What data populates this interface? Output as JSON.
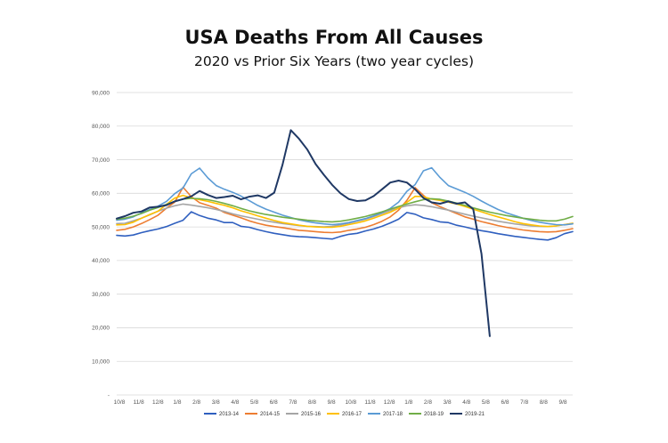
{
  "chart_data": {
    "type": "line",
    "title": "USA Deaths From All Causes",
    "subtitle": "2020 vs Prior Six Years (two year cycles)",
    "xlabel": "",
    "ylabel": "",
    "ylim": [
      0,
      90000
    ],
    "y_ticks": [
      "-",
      "10,000",
      "20,000",
      "30,000",
      "40,000",
      "50,000",
      "60,000",
      "70,000",
      "80,000",
      "90,000"
    ],
    "y_tick_values": [
      0,
      10000,
      20000,
      30000,
      40000,
      50000,
      60000,
      70000,
      80000,
      90000
    ],
    "x_ticks": [
      "10/8",
      "11/8",
      "12/8",
      "1/8",
      "2/8",
      "3/8",
      "4/8",
      "5/8",
      "6/8",
      "7/8",
      "8/8",
      "9/8",
      "10/8",
      "11/8",
      "12/8",
      "1/8",
      "2/8",
      "3/8",
      "4/8",
      "5/8",
      "6/8",
      "7/8",
      "8/8",
      "9/8"
    ],
    "grid": true,
    "legend_position": "bottom",
    "series": [
      {
        "name": "2013-14",
        "color": "#2f5fbf",
        "values": [
          47500,
          47300,
          47600,
          48300,
          48900,
          49400,
          50100,
          51100,
          52000,
          54500,
          53400,
          52600,
          52100,
          51300,
          51300,
          50200,
          49900,
          49200,
          48600,
          48100,
          47700,
          47300,
          47100,
          47000,
          46800,
          46600,
          46400,
          47200,
          47800,
          48100,
          48800,
          49400,
          50200,
          51200,
          52300,
          54300,
          53800,
          52700,
          52200,
          51500,
          51300,
          50500,
          50000,
          49400,
          48900,
          48500,
          48000,
          47600,
          47200,
          46900,
          46600,
          46300,
          46100,
          46800,
          48000,
          48600
        ]
      },
      {
        "name": "2014-15",
        "color": "#ed7d31",
        "values": [
          49000,
          49300,
          50000,
          51000,
          52200,
          53500,
          55600,
          57400,
          61800,
          59000,
          57200,
          56400,
          55600,
          54300,
          53500,
          52700,
          51800,
          51100,
          50500,
          50100,
          49800,
          49400,
          49000,
          48800,
          48600,
          48400,
          48300,
          48500,
          49000,
          49400,
          49900,
          50700,
          51700,
          53000,
          55000,
          57900,
          61700,
          59400,
          57200,
          56000,
          55000,
          54000,
          53000,
          52300,
          51600,
          51000,
          50400,
          49900,
          49500,
          49100,
          48800,
          48600,
          48500,
          48600,
          49000,
          49500
        ]
      },
      {
        "name": "2015-16",
        "color": "#a5a5a5",
        "values": [
          51000,
          51100,
          51800,
          52600,
          53600,
          54700,
          55600,
          56300,
          56800,
          56500,
          56100,
          55700,
          55200,
          54600,
          53900,
          53300,
          52800,
          52300,
          51800,
          51400,
          51000,
          50700,
          50400,
          50200,
          50100,
          50000,
          50200,
          50600,
          51100,
          51700,
          52300,
          53100,
          54000,
          54900,
          55700,
          56300,
          56600,
          56400,
          56000,
          55500,
          55000,
          54400,
          53800,
          53200,
          52700,
          52200,
          51700,
          51300,
          50900,
          50600,
          50300,
          50200,
          50100,
          50300,
          50700,
          51100
        ]
      },
      {
        "name": "2016-17",
        "color": "#ffc000",
        "values": [
          50600,
          50700,
          51400,
          52600,
          53700,
          54700,
          56700,
          58600,
          59400,
          58600,
          58100,
          57600,
          57000,
          56400,
          55700,
          54800,
          54100,
          53300,
          52600,
          51900,
          51300,
          50900,
          50500,
          50200,
          50000,
          49900,
          49900,
          50200,
          50700,
          51200,
          51800,
          52600,
          53500,
          54400,
          55600,
          57300,
          59100,
          59000,
          58300,
          57900,
          57400,
          56800,
          56100,
          55300,
          54500,
          53700,
          53000,
          52300,
          51600,
          51000,
          50600,
          50300,
          50100,
          50300,
          50700,
          51100
        ]
      },
      {
        "name": "2017-18",
        "color": "#5b9bd5",
        "values": [
          52000,
          52300,
          53000,
          54200,
          55200,
          56200,
          57600,
          59900,
          61600,
          65800,
          67500,
          64600,
          62300,
          61200,
          60300,
          59200,
          57800,
          56400,
          55300,
          54400,
          53500,
          52800,
          52100,
          51600,
          51200,
          50900,
          50700,
          50900,
          51300,
          51900,
          52500,
          53300,
          54300,
          55500,
          57400,
          60600,
          62600,
          66700,
          67600,
          64700,
          62300,
          61300,
          60300,
          59100,
          57700,
          56400,
          55200,
          54200,
          53400,
          52600,
          51900,
          51400,
          51000,
          50700,
          50600,
          50900
        ]
      },
      {
        "name": "2018-19",
        "color": "#70ad47",
        "values": [
          52300,
          52600,
          53200,
          54000,
          55000,
          55800,
          56700,
          57600,
          58300,
          58500,
          58400,
          58100,
          57600,
          57000,
          56300,
          55500,
          54800,
          54200,
          53700,
          53300,
          52900,
          52600,
          52300,
          52000,
          51800,
          51600,
          51500,
          51700,
          52100,
          52600,
          53100,
          53800,
          54500,
          55300,
          56100,
          56800,
          57500,
          58100,
          58400,
          58200,
          57700,
          57100,
          56400,
          55700,
          55000,
          54400,
          53900,
          53400,
          53000,
          52600,
          52300,
          52000,
          51800,
          51800,
          52300,
          53100
        ]
      },
      {
        "name": "2019-21",
        "color": "#1f3864",
        "values": [
          52500,
          53200,
          54200,
          54600,
          55800,
          56000,
          56500,
          57600,
          58300,
          59100,
          60700,
          59500,
          58600,
          58900,
          59300,
          58200,
          59000,
          59400,
          58600,
          60200,
          68500,
          78800,
          76200,
          73000,
          68700,
          65500,
          62500,
          60000,
          58300,
          57700,
          57900,
          59200,
          61200,
          63200,
          63800,
          63200,
          61200,
          58600,
          57300,
          56900,
          57600,
          56900,
          57300,
          55300,
          42000,
          17500
        ]
      }
    ]
  }
}
